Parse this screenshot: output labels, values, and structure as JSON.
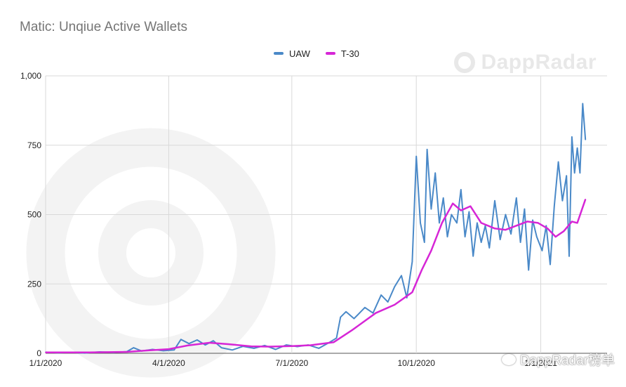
{
  "title": "Matic: Unqiue Active Wallets",
  "brand_watermark": "DappRadar",
  "footer_watermark": "DappRadar榜单",
  "colors": {
    "uaw": "#4a89c8",
    "t30": "#d626d6",
    "grid": "#d9d9d9"
  },
  "chart_data": {
    "type": "line",
    "title": "Matic: Unqiue Active Wallets",
    "xlabel": "",
    "ylabel": "",
    "x_range": [
      "2020-01-01",
      "2021-02-19"
    ],
    "ylim": [
      0,
      1000
    ],
    "yticks": [
      0,
      250,
      500,
      750,
      1000
    ],
    "ytick_labels": [
      "0",
      "250",
      "500",
      "750",
      "1,000"
    ],
    "xticks": [
      "2020-01-01",
      "2020-04-01",
      "2020-07-01",
      "2020-10-01",
      "2021-01-01"
    ],
    "xtick_labels": [
      "1/1/2020",
      "4/1/2020",
      "7/1/2020",
      "10/1/2020",
      "1/1/2021"
    ],
    "grid": true,
    "legend_position": "top",
    "series": [
      {
        "name": "UAW",
        "points": [
          [
            "2020-01-01",
            4
          ],
          [
            "2020-01-10",
            2
          ],
          [
            "2020-01-20",
            3
          ],
          [
            "2020-01-30",
            1
          ],
          [
            "2020-02-10",
            5
          ],
          [
            "2020-02-20",
            3
          ],
          [
            "2020-03-01",
            6
          ],
          [
            "2020-03-06",
            20
          ],
          [
            "2020-03-12",
            8
          ],
          [
            "2020-03-20",
            14
          ],
          [
            "2020-03-28",
            9
          ],
          [
            "2020-04-05",
            12
          ],
          [
            "2020-04-10",
            50
          ],
          [
            "2020-04-16",
            35
          ],
          [
            "2020-04-22",
            48
          ],
          [
            "2020-04-28",
            30
          ],
          [
            "2020-05-04",
            45
          ],
          [
            "2020-05-10",
            20
          ],
          [
            "2020-05-18",
            12
          ],
          [
            "2020-05-26",
            25
          ],
          [
            "2020-06-03",
            18
          ],
          [
            "2020-06-11",
            28
          ],
          [
            "2020-06-19",
            14
          ],
          [
            "2020-06-27",
            30
          ],
          [
            "2020-07-05",
            24
          ],
          [
            "2020-07-13",
            30
          ],
          [
            "2020-07-21",
            18
          ],
          [
            "2020-07-29",
            40
          ],
          [
            "2020-08-03",
            55
          ],
          [
            "2020-08-06",
            130
          ],
          [
            "2020-08-10",
            150
          ],
          [
            "2020-08-16",
            125
          ],
          [
            "2020-08-24",
            165
          ],
          [
            "2020-08-30",
            145
          ],
          [
            "2020-09-05",
            210
          ],
          [
            "2020-09-10",
            185
          ],
          [
            "2020-09-15",
            240
          ],
          [
            "2020-09-20",
            280
          ],
          [
            "2020-09-24",
            200
          ],
          [
            "2020-09-28",
            330
          ],
          [
            "2020-10-01",
            710
          ],
          [
            "2020-10-04",
            470
          ],
          [
            "2020-10-07",
            400
          ],
          [
            "2020-10-09",
            735
          ],
          [
            "2020-10-12",
            520
          ],
          [
            "2020-10-15",
            650
          ],
          [
            "2020-10-18",
            470
          ],
          [
            "2020-10-21",
            560
          ],
          [
            "2020-10-24",
            420
          ],
          [
            "2020-10-27",
            500
          ],
          [
            "2020-10-31",
            470
          ],
          [
            "2020-11-03",
            590
          ],
          [
            "2020-11-06",
            420
          ],
          [
            "2020-11-09",
            510
          ],
          [
            "2020-11-12",
            350
          ],
          [
            "2020-11-15",
            470
          ],
          [
            "2020-11-18",
            400
          ],
          [
            "2020-11-21",
            460
          ],
          [
            "2020-11-24",
            380
          ],
          [
            "2020-11-28",
            550
          ],
          [
            "2020-12-02",
            410
          ],
          [
            "2020-12-06",
            500
          ],
          [
            "2020-12-10",
            430
          ],
          [
            "2020-12-14",
            560
          ],
          [
            "2020-12-17",
            400
          ],
          [
            "2020-12-20",
            520
          ],
          [
            "2020-12-23",
            300
          ],
          [
            "2020-12-26",
            480
          ],
          [
            "2020-12-29",
            420
          ],
          [
            "2021-01-02",
            370
          ],
          [
            "2021-01-05",
            460
          ],
          [
            "2021-01-08",
            320
          ],
          [
            "2021-01-11",
            530
          ],
          [
            "2021-01-14",
            690
          ],
          [
            "2021-01-17",
            550
          ],
          [
            "2021-01-20",
            640
          ],
          [
            "2021-01-22",
            350
          ],
          [
            "2021-01-24",
            780
          ],
          [
            "2021-01-26",
            650
          ],
          [
            "2021-01-28",
            740
          ],
          [
            "2021-01-30",
            650
          ],
          [
            "2021-02-01",
            900
          ],
          [
            "2021-02-03",
            770
          ]
        ]
      },
      {
        "name": "T-30",
        "points": [
          [
            "2020-01-01",
            3
          ],
          [
            "2020-02-01",
            3
          ],
          [
            "2020-03-01",
            5
          ],
          [
            "2020-03-15",
            10
          ],
          [
            "2020-04-01",
            15
          ],
          [
            "2020-04-15",
            28
          ],
          [
            "2020-05-01",
            38
          ],
          [
            "2020-05-15",
            33
          ],
          [
            "2020-06-01",
            25
          ],
          [
            "2020-06-15",
            24
          ],
          [
            "2020-07-01",
            26
          ],
          [
            "2020-07-15",
            29
          ],
          [
            "2020-08-01",
            40
          ],
          [
            "2020-08-15",
            85
          ],
          [
            "2020-09-01",
            145
          ],
          [
            "2020-09-15",
            175
          ],
          [
            "2020-09-28",
            220
          ],
          [
            "2020-10-05",
            300
          ],
          [
            "2020-10-12",
            370
          ],
          [
            "2020-10-20",
            470
          ],
          [
            "2020-10-28",
            540
          ],
          [
            "2020-11-03",
            515
          ],
          [
            "2020-11-10",
            530
          ],
          [
            "2020-11-18",
            470
          ],
          [
            "2020-11-28",
            450
          ],
          [
            "2020-12-06",
            445
          ],
          [
            "2020-12-14",
            460
          ],
          [
            "2020-12-22",
            475
          ],
          [
            "2020-12-30",
            470
          ],
          [
            "2021-01-06",
            450
          ],
          [
            "2021-01-12",
            420
          ],
          [
            "2021-01-18",
            440
          ],
          [
            "2021-01-24",
            475
          ],
          [
            "2021-01-28",
            470
          ],
          [
            "2021-02-03",
            555
          ]
        ]
      }
    ]
  }
}
